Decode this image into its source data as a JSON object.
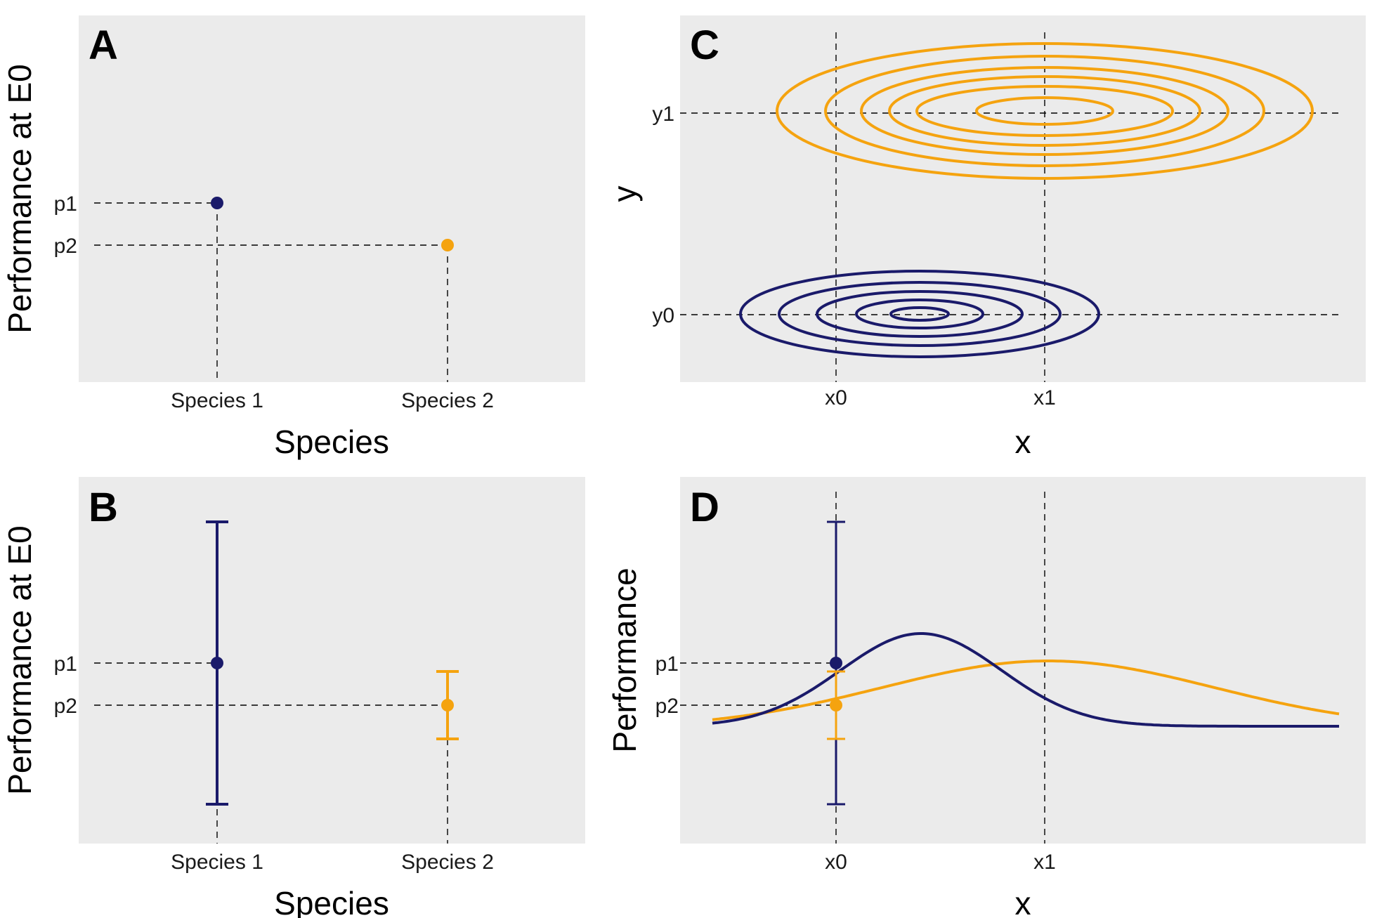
{
  "colors": {
    "species1": "#1a1a6a",
    "species2": "#f5a30f",
    "panel_background": "#ebebeb"
  },
  "chart_data": [
    {
      "panel": "A",
      "type": "scatter",
      "xlabel": "Species",
      "ylabel": "Performance at E0",
      "categories": [
        "Species 1",
        "Species 2"
      ],
      "y_ticks": [
        "p1",
        "p2"
      ],
      "points": [
        {
          "category": "Species 1",
          "y": "p1",
          "color": "#1a1a6a"
        },
        {
          "category": "Species 2",
          "y": "p2",
          "color": "#f5a30f"
        }
      ],
      "grid": false
    },
    {
      "panel": "B",
      "type": "scatter",
      "xlabel": "Species",
      "ylabel": "Performance at E0",
      "categories": [
        "Species 1",
        "Species 2"
      ],
      "y_ticks": [
        "p1",
        "p2"
      ],
      "points": [
        {
          "category": "Species 1",
          "y": "p1",
          "error_bar": "large",
          "color": "#1a1a6a"
        },
        {
          "category": "Species 2",
          "y": "p2",
          "error_bar": "small",
          "color": "#f5a30f"
        }
      ],
      "grid": false
    },
    {
      "panel": "C",
      "type": "line",
      "subtype": "contour",
      "xlabel": "x",
      "ylabel": "y",
      "x_ticks": [
        "x0",
        "x1"
      ],
      "y_ticks": [
        "y0",
        "y1"
      ],
      "series": [
        {
          "color": "#1a1a6a",
          "contours": 5
        },
        {
          "color": "#f5a30f",
          "contours": 6
        }
      ],
      "grid": false
    },
    {
      "panel": "D",
      "type": "line",
      "xlabel": "x",
      "ylabel": "Performance",
      "x_ticks": [
        "x0",
        "x1"
      ],
      "y_ticks": [
        "p1",
        "p2"
      ],
      "series": [
        {
          "color": "#1a1a6a",
          "shape": "narrow peak near x0",
          "point_at_x0": "p1",
          "error_bar": "large"
        },
        {
          "color": "#f5a30f",
          "shape": "broad peak at x1",
          "point_at_x0": "p2",
          "error_bar": "small"
        }
      ],
      "grid": false
    }
  ]
}
